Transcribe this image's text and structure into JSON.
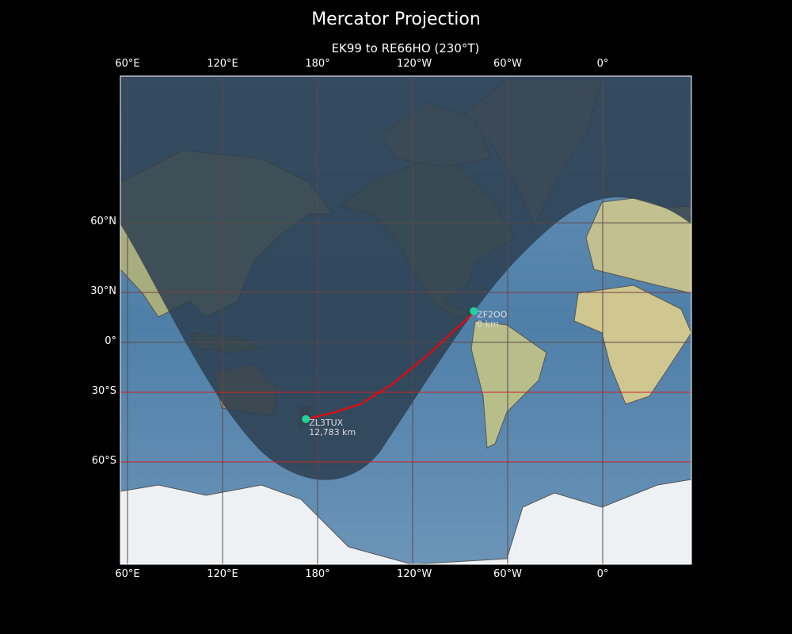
{
  "title": "Mercator Projection",
  "subtitle": "EK99 to RE66HO (230°T)",
  "x_ticks": [
    "60°E",
    "120°E",
    "180°",
    "120°W",
    "60°W",
    "0°"
  ],
  "y_ticks": [
    "60°N",
    "30°N",
    "0°",
    "30°S",
    "60°S"
  ],
  "stations": [
    {
      "call": "ZF2OO",
      "distance": "0 km",
      "lat": 19.3,
      "lon": -81.4
    },
    {
      "call": "ZL3TUX",
      "distance": "12,783 km",
      "lat": -43.5,
      "lon": 172.6
    }
  ],
  "colors": {
    "path": "#ff0000",
    "marker": "#1fd39b",
    "night_overlay": "#2c3e50",
    "grid_highlight": "#cc2222"
  }
}
